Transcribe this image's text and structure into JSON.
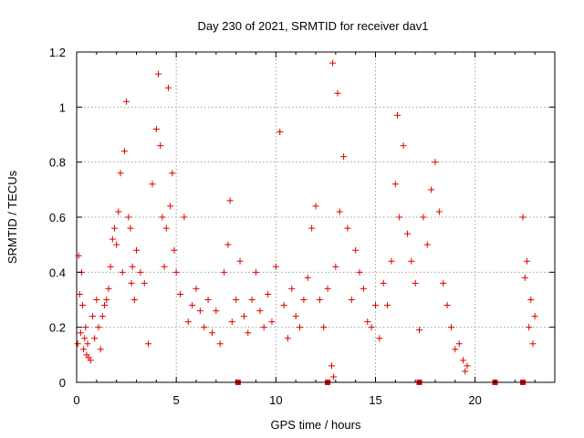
{
  "chart_data": {
    "type": "scatter",
    "title": "Day 230 of 2021, SRMTID for receiver dav1",
    "xlabel": "GPS time / hours",
    "ylabel": "SRMTID / TECUs",
    "xlim": [
      0,
      24
    ],
    "ylim": [
      0,
      1.2
    ],
    "xticks": [
      "0",
      "5",
      "10",
      "15",
      "20"
    ],
    "yticks": [
      "0",
      "0.2",
      "0.4",
      "0.6",
      "0.8",
      "1",
      "1.2"
    ],
    "grid": true,
    "marker": "plus",
    "color": "#e00000",
    "series": [
      {
        "name": "dav1",
        "x": [
          0.05,
          0.1,
          0.15,
          0.2,
          0.25,
          0.3,
          0.35,
          0.4,
          0.45,
          0.5,
          0.55,
          0.6,
          0.7,
          0.8,
          0.9,
          1.0,
          1.1,
          1.2,
          1.3,
          1.4,
          1.5,
          1.6,
          1.7,
          1.8,
          1.9,
          2.0,
          2.1,
          2.2,
          2.3,
          2.4,
          2.5,
          2.6,
          2.7,
          2.75,
          2.8,
          2.9,
          3.0,
          3.2,
          3.4,
          3.6,
          3.8,
          4.0,
          4.1,
          4.2,
          4.3,
          4.4,
          4.5,
          4.6,
          4.7,
          4.8,
          4.9,
          5.0,
          5.2,
          5.4,
          5.6,
          5.8,
          6.0,
          6.2,
          6.4,
          6.6,
          6.8,
          7.0,
          7.2,
          7.4,
          7.6,
          7.7,
          7.8,
          8.0,
          8.2,
          8.4,
          8.6,
          8.8,
          9.0,
          9.2,
          9.4,
          9.6,
          9.8,
          10.0,
          10.2,
          10.4,
          10.6,
          10.8,
          11.0,
          11.2,
          11.4,
          11.6,
          11.8,
          12.0,
          12.2,
          12.4,
          12.6,
          12.8,
          12.85,
          12.9,
          13.0,
          13.1,
          13.2,
          13.4,
          13.6,
          13.8,
          14.0,
          14.2,
          14.4,
          14.6,
          14.8,
          15.0,
          15.2,
          15.4,
          15.6,
          15.8,
          16.0,
          16.1,
          16.2,
          16.4,
          16.6,
          16.8,
          17.0,
          17.2,
          17.4,
          17.6,
          17.8,
          18.0,
          18.2,
          18.4,
          18.6,
          18.8,
          19.0,
          19.2,
          19.4,
          19.5,
          19.6,
          22.4,
          22.5,
          22.6,
          22.7,
          22.8,
          22.9,
          23.0
        ],
        "y": [
          0.14,
          0.46,
          0.32,
          0.18,
          0.4,
          0.28,
          0.12,
          0.16,
          0.2,
          0.1,
          0.14,
          0.09,
          0.08,
          0.24,
          0.16,
          0.3,
          0.2,
          0.12,
          0.24,
          0.28,
          0.3,
          0.34,
          0.42,
          0.52,
          0.56,
          0.5,
          0.62,
          0.76,
          0.4,
          0.84,
          1.02,
          0.6,
          0.56,
          0.36,
          0.42,
          0.3,
          0.48,
          0.4,
          0.36,
          0.14,
          0.72,
          0.92,
          1.12,
          0.86,
          0.6,
          0.42,
          0.56,
          1.07,
          0.64,
          0.76,
          0.48,
          0.4,
          0.32,
          0.6,
          0.22,
          0.28,
          0.34,
          0.26,
          0.2,
          0.3,
          0.18,
          0.26,
          0.14,
          0.4,
          0.5,
          0.66,
          0.22,
          0.3,
          0.44,
          0.24,
          0.18,
          0.3,
          0.4,
          0.26,
          0.2,
          0.32,
          0.22,
          0.42,
          0.91,
          0.28,
          0.16,
          0.34,
          0.24,
          0.2,
          0.3,
          0.38,
          0.56,
          0.64,
          0.3,
          0.2,
          0.34,
          0.06,
          1.16,
          0.02,
          0.42,
          1.05,
          0.62,
          0.82,
          0.56,
          0.3,
          0.48,
          0.4,
          0.34,
          0.22,
          0.2,
          0.28,
          0.16,
          0.36,
          0.28,
          0.44,
          0.72,
          0.97,
          0.6,
          0.86,
          0.54,
          0.44,
          0.36,
          0.19,
          0.6,
          0.5,
          0.7,
          0.8,
          0.62,
          0.36,
          0.28,
          0.2,
          0.12,
          0.14,
          0.08,
          0.04,
          0.06,
          0.6,
          0.38,
          0.44,
          0.2,
          0.3,
          0.14,
          0.24
        ]
      },
      {
        "name": "zero-markers",
        "marker": "square",
        "x": [
          8.1,
          12.6,
          17.2,
          21.0,
          22.4
        ],
        "y": [
          0,
          0,
          0,
          0,
          0
        ]
      }
    ]
  }
}
